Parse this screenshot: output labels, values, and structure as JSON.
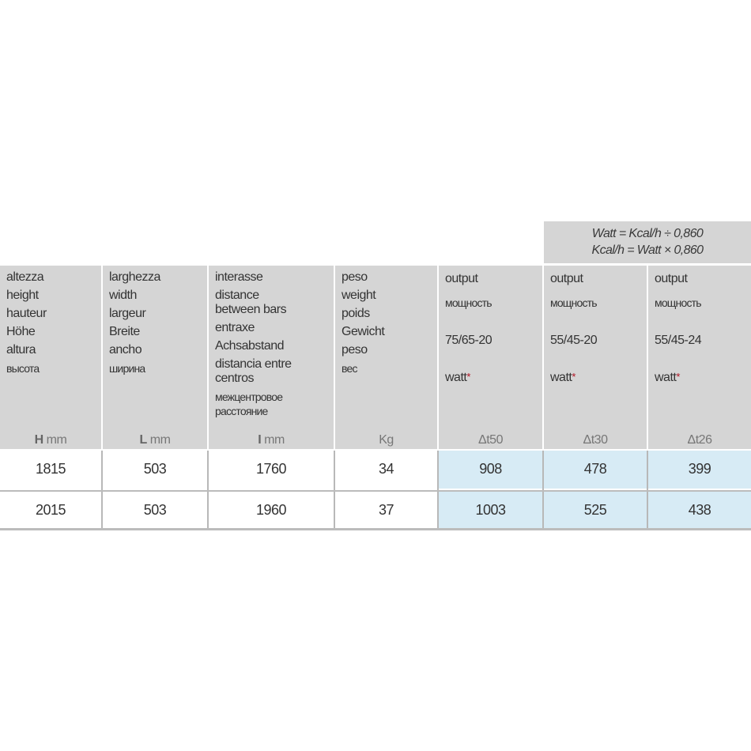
{
  "formula": {
    "line1": "Watt = Kcal/h ÷ 0,860",
    "line2": "Kcal/h = Watt × 0,860"
  },
  "columns": [
    {
      "items": [
        [
          "altezza"
        ],
        [
          "height"
        ],
        [
          "hauteur"
        ],
        [
          "Höhe"
        ],
        [
          "altura"
        ],
        [
          "высота"
        ]
      ],
      "unit_symbol": "H",
      "unit": "mm"
    },
    {
      "items": [
        [
          "larghezza"
        ],
        [
          "width"
        ],
        [
          "largeur"
        ],
        [
          "Breite"
        ],
        [
          "ancho"
        ],
        [
          "ширина"
        ]
      ],
      "unit_symbol": "L",
      "unit": "mm"
    },
    {
      "items": [
        [
          "interasse"
        ],
        [
          "distance",
          "between bars"
        ],
        [
          "entraxe"
        ],
        [
          "Achsabstand"
        ],
        [
          "distancia entre",
          "centros"
        ],
        [
          "межцентровое",
          "расстояние"
        ]
      ],
      "unit_symbol": "I",
      "unit": "mm"
    },
    {
      "items": [
        [
          "peso"
        ],
        [
          "weight"
        ],
        [
          "poids"
        ],
        [
          "Gewicht"
        ],
        [
          "peso"
        ],
        [
          "вес"
        ]
      ],
      "unit_symbol": "",
      "unit": "Kg"
    }
  ],
  "output_columns": [
    {
      "label": "output",
      "label_ru": "мощность",
      "condition": "75/65-20",
      "measure": "watt",
      "mark": "*",
      "delta": "Δt50"
    },
    {
      "label": "output",
      "label_ru": "мощность",
      "condition": "55/45-20",
      "measure": "watt",
      "mark": "*",
      "delta": "Δt30"
    },
    {
      "label": "output",
      "label_ru": "мощность",
      "condition": "55/45-24",
      "measure": "watt",
      "mark": "*",
      "delta": "Δt26"
    }
  ],
  "rows": [
    [
      "1815",
      "503",
      "1760",
      "34",
      "908",
      "478",
      "399"
    ],
    [
      "2015",
      "503",
      "1960",
      "37",
      "1003",
      "525",
      "438"
    ]
  ],
  "colors": {
    "header": "#d5d5d5",
    "output_cells": "#d7ebf5",
    "asterisk": "#b01020"
  }
}
